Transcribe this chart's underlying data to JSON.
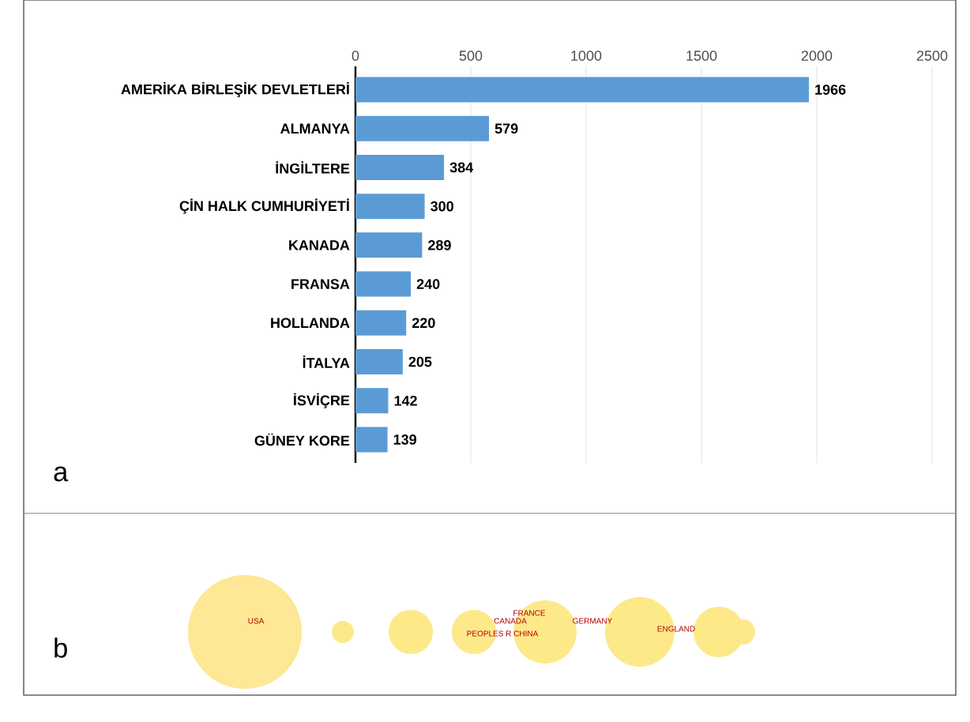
{
  "chart_data": [
    {
      "type": "bar",
      "orientation": "horizontal",
      "categories": [
        "AMERİKA BİRLEŞİK DEVLETLERİ",
        "ALMANYA",
        "İNGİLTERE",
        "ÇİN HALK CUMHURİYETİ",
        "KANADA",
        "FRANSA",
        "HOLLANDA",
        "İTALYA",
        "İSVİÇRE",
        "GÜNEY KORE"
      ],
      "values": [
        1966,
        579,
        384,
        300,
        289,
        240,
        220,
        205,
        142,
        139
      ],
      "color": "#5b9bd5",
      "xlim": [
        0,
        2500
      ],
      "xticks": [
        0,
        500,
        1000,
        1500,
        2000,
        2500
      ],
      "grid": "x",
      "data_labels": true,
      "annotations": [
        "a"
      ]
    },
    {
      "type": "other",
      "annotations": [
        "b",
        "USA",
        "CANADA",
        "FRANCE",
        "PEOPLES R CHINA",
        "GERMANY",
        "ENGLAND"
      ]
    }
  ]
}
